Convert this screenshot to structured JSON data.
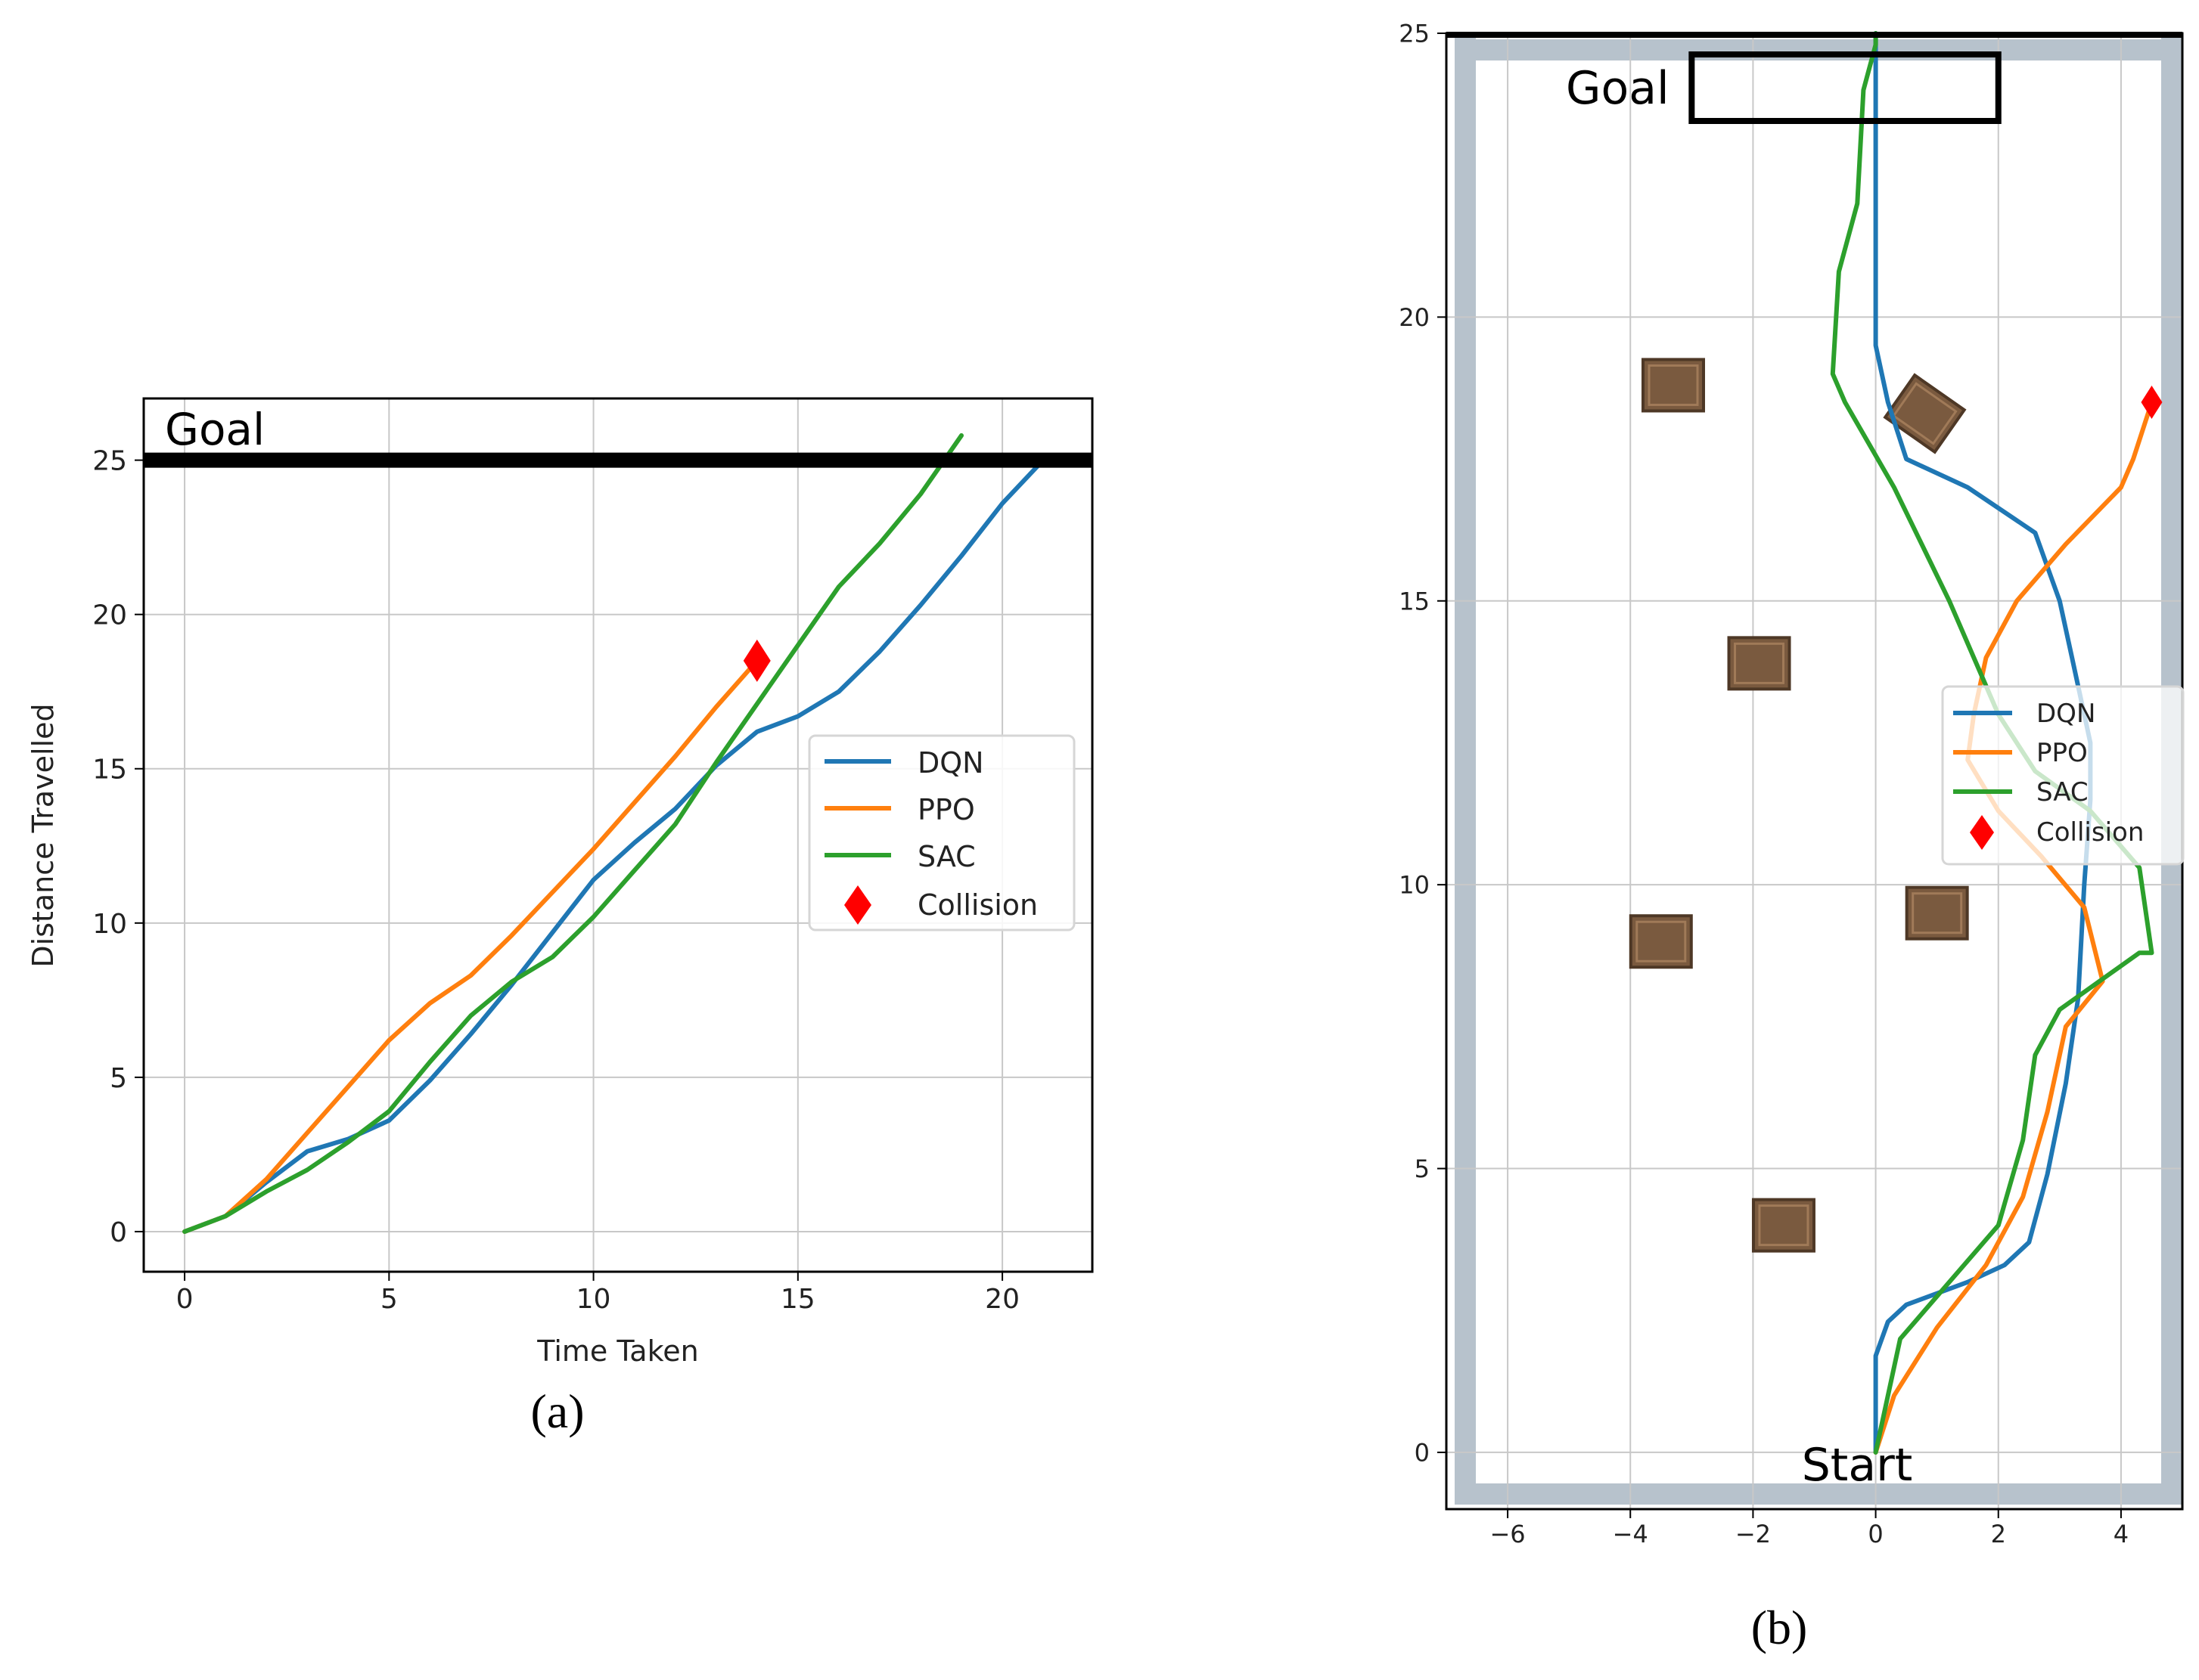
{
  "colors": {
    "DQN": "#1f77b4",
    "PPO": "#ff7f0e",
    "SAC": "#2ca02c",
    "collision": "#ff0000",
    "goal_line": "#000000",
    "obstacle": "#7a5a3f",
    "wall": "#b7c2cc"
  },
  "chart_data": [
    {
      "id": "a",
      "type": "line",
      "caption": "(a)",
      "xlabel": "Time Taken",
      "ylabel": "Distance Travelled",
      "xlim": [
        -1,
        22.2
      ],
      "ylim": [
        -1.3,
        27
      ],
      "xticks": [
        0,
        5,
        10,
        15,
        20
      ],
      "yticks": [
        0,
        5,
        10,
        15,
        20,
        25
      ],
      "grid": true,
      "goal": {
        "label": "Goal",
        "y": 25
      },
      "legend": [
        "DQN",
        "PPO",
        "SAC",
        "Collision"
      ],
      "legend_location": "center-right",
      "series": [
        {
          "name": "DQN",
          "x": [
            0,
            1,
            2,
            3,
            4,
            5,
            6,
            7,
            8,
            9,
            10,
            11,
            12,
            13,
            14,
            15,
            16,
            17,
            18,
            19,
            20,
            21
          ],
          "y": [
            0,
            0.5,
            1.6,
            2.6,
            3.0,
            3.6,
            4.9,
            6.4,
            8.0,
            9.7,
            11.4,
            12.6,
            13.7,
            15.1,
            16.2,
            16.7,
            17.5,
            18.8,
            20.3,
            21.9,
            23.6,
            25.0
          ]
        },
        {
          "name": "PPO",
          "x": [
            0,
            1,
            2,
            3,
            4,
            5,
            6,
            7,
            8,
            9,
            10,
            11,
            12,
            13,
            14
          ],
          "y": [
            0,
            0.5,
            1.7,
            3.2,
            4.7,
            6.2,
            7.4,
            8.3,
            9.6,
            11.0,
            12.4,
            13.9,
            15.4,
            17.0,
            18.5
          ]
        },
        {
          "name": "SAC",
          "x": [
            0,
            1,
            2,
            3,
            4,
            5,
            6,
            7,
            8,
            9,
            10,
            11,
            12,
            13,
            14,
            15,
            16,
            17,
            18,
            19
          ],
          "y": [
            0,
            0.5,
            1.3,
            2.0,
            2.9,
            3.9,
            5.5,
            7.0,
            8.1,
            8.9,
            10.2,
            11.7,
            13.2,
            15.2,
            17.1,
            19.0,
            20.9,
            22.3,
            23.9,
            25.8
          ]
        }
      ],
      "collisions": [
        {
          "x": 14,
          "y": 18.5
        }
      ]
    },
    {
      "id": "b",
      "type": "line",
      "caption": "(b)",
      "xlim": [
        -7,
        5
      ],
      "ylim": [
        -1,
        25
      ],
      "xticks": [
        -6,
        -4,
        -2,
        0,
        2,
        4
      ],
      "yticks": [
        0,
        5,
        10,
        15,
        20,
        25
      ],
      "grid": true,
      "goal": {
        "label": "Goal",
        "y": 25,
        "x_range": [
          -3,
          2
        ]
      },
      "start_label": "Start",
      "legend": [
        "DQN",
        "PPO",
        "SAC",
        "Collision"
      ],
      "legend_location": "right",
      "obstacles": [
        {
          "x": -3.3,
          "y": 18.8,
          "rot": 0
        },
        {
          "x": 0.8,
          "y": 18.3,
          "rot": 35
        },
        {
          "x": -1.9,
          "y": 13.9,
          "rot": 0
        },
        {
          "x": -3.5,
          "y": 9.0,
          "rot": 0
        },
        {
          "x": 1.0,
          "y": 9.5,
          "rot": 0
        },
        {
          "x": -1.5,
          "y": 4.0,
          "rot": 0
        }
      ],
      "series": [
        {
          "name": "DQN",
          "x": [
            0,
            0,
            0,
            0.2,
            0.5,
            1.5,
            2.1,
            2.5,
            2.8,
            3.1,
            3.3,
            3.4,
            3.5,
            3.5,
            3.4,
            3.3,
            3.2,
            3.0,
            2.6,
            1.5,
            0.5,
            0.2,
            0,
            0,
            0,
            0,
            0
          ],
          "y": [
            0,
            0.5,
            1.7,
            2.3,
            2.6,
            3.0,
            3.3,
            3.7,
            4.9,
            6.5,
            8.0,
            10.0,
            11.5,
            12.5,
            13.0,
            13.5,
            14.0,
            15.0,
            16.2,
            17.0,
            17.5,
            18.5,
            19.5,
            21.0,
            22.5,
            24.0,
            25.0
          ]
        },
        {
          "name": "PPO",
          "x": [
            0,
            0.3,
            1.0,
            1.8,
            2.4,
            2.8,
            3.1,
            3.7,
            3.4,
            2.7,
            2.0,
            1.5,
            1.6,
            1.8,
            2.3,
            3.1,
            4.0,
            4.2,
            4.5
          ],
          "y": [
            0,
            1.0,
            2.2,
            3.3,
            4.5,
            6.0,
            7.5,
            8.3,
            9.6,
            10.5,
            11.3,
            12.2,
            13.0,
            14.0,
            15.0,
            16.0,
            17.0,
            17.5,
            18.5
          ]
        },
        {
          "name": "SAC",
          "x": [
            0,
            0.4,
            1.2,
            2.0,
            2.4,
            2.6,
            3.0,
            4.3,
            4.5,
            4.3,
            3.5,
            2.6,
            2.0,
            1.2,
            0.3,
            -0.5,
            -0.7,
            -0.6,
            -0.3,
            -0.2,
            0,
            0
          ],
          "y": [
            0,
            2.0,
            3.0,
            4.0,
            5.5,
            7.0,
            7.8,
            8.8,
            8.8,
            10.3,
            11.3,
            12.0,
            13.0,
            15.0,
            17.0,
            18.5,
            19.0,
            20.8,
            22.0,
            24.0,
            24.8,
            25.0
          ]
        }
      ],
      "collisions": [
        {
          "x": 4.5,
          "y": 18.5
        }
      ]
    }
  ]
}
